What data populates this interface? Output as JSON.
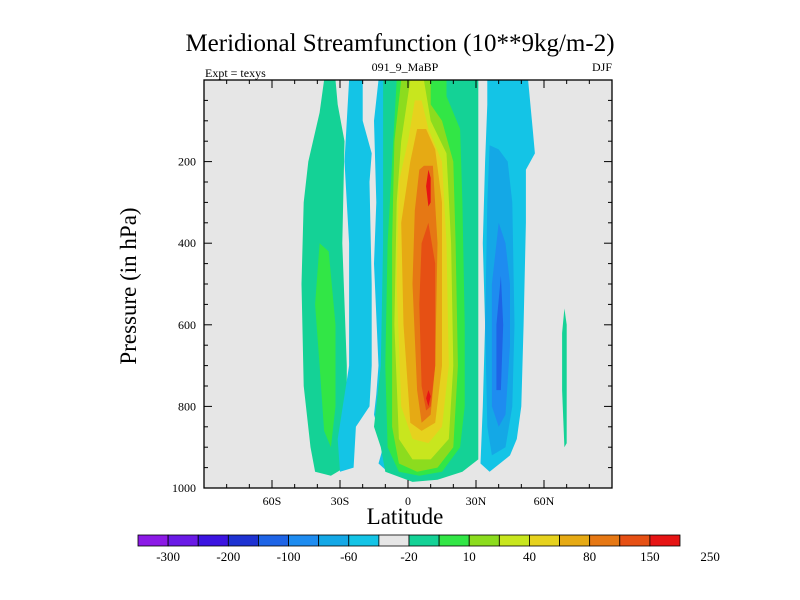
{
  "chart_data": {
    "type": "heatmap",
    "subtype": "filled-contour",
    "title": "Meridional Streamfunction (10**9kg/m-2)",
    "subtitle_left": "Expt = texys",
    "subtitle_center": "091_9_MaBP",
    "subtitle_right": "DJF",
    "xlabel": "Latitude",
    "ylabel": "Pressure (in hPa)",
    "xlim": [
      -90,
      90
    ],
    "ylim": [
      1000,
      0
    ],
    "x_ticks": [
      -60,
      -30,
      0,
      30,
      60
    ],
    "x_tick_labels": [
      "60S",
      "30S",
      "0",
      "30N",
      "60N"
    ],
    "y_ticks": [
      200,
      400,
      600,
      800,
      1000
    ],
    "y_tick_labels": [
      "200",
      "400",
      "600",
      "800",
      "1000"
    ],
    "background_color": "#e6e6e6",
    "colorbar": {
      "labels": [
        "-300",
        "-200",
        "-100",
        "-60",
        "-20",
        "10",
        "40",
        "80",
        "150",
        "250"
      ],
      "colors": [
        "#8c1ae6",
        "#6a1ae6",
        "#3c14e1",
        "#1e32d2",
        "#1e64e6",
        "#1e8cf0",
        "#14a8e6",
        "#14c4e6",
        "#e6e6e6",
        "#14d296",
        "#32e646",
        "#8cdc1e",
        "#c8e61e",
        "#e6d21e",
        "#e6aa14",
        "#e67814",
        "#e65014",
        "#e61414"
      ]
    },
    "regions": [
      {
        "name": "sh-ferrel-cell",
        "level": 10,
        "color": "#14d296",
        "points": [
          [
            -37,
            0
          ],
          [
            -32,
            0
          ],
          [
            -31,
            60
          ],
          [
            -28,
            150
          ],
          [
            -29,
            400
          ],
          [
            -27,
            700
          ],
          [
            -27,
            900
          ],
          [
            -28,
            950
          ],
          [
            -34,
            970
          ],
          [
            -41,
            960
          ],
          [
            -43,
            900
          ],
          [
            -46,
            750
          ],
          [
            -47,
            500
          ],
          [
            -46,
            300
          ],
          [
            -44,
            200
          ],
          [
            -39,
            80
          ]
        ]
      },
      {
        "name": "sh-ferrel-core",
        "level": 40,
        "color": "#32e646",
        "points": [
          [
            -39,
            400
          ],
          [
            -35,
            420
          ],
          [
            -32,
            600
          ],
          [
            -32,
            800
          ],
          [
            -34,
            900
          ],
          [
            -37,
            860
          ],
          [
            -39,
            700
          ],
          [
            -41,
            550
          ]
        ]
      },
      {
        "name": "polar-negative",
        "level": -20,
        "color": "#14c4e6",
        "points": [
          [
            -26,
            0
          ],
          [
            -20,
            0
          ],
          [
            -20,
            100
          ],
          [
            -16,
            180
          ],
          [
            -17,
            250
          ],
          [
            -16,
            500
          ],
          [
            -16,
            700
          ],
          [
            -17,
            800
          ],
          [
            -23,
            850
          ],
          [
            -24,
            950
          ],
          [
            -30,
            960
          ],
          [
            -31,
            880
          ],
          [
            -26,
            700
          ],
          [
            -26,
            400
          ],
          [
            -28,
            200
          ],
          [
            -27,
            100
          ]
        ]
      },
      {
        "name": "subtropical-negative",
        "level": -20,
        "color": "#14c4e6",
        "points": [
          [
            -13,
            0
          ],
          [
            -9,
            0
          ],
          [
            -9,
            960
          ],
          [
            -13,
            940
          ],
          [
            -11,
            900
          ],
          [
            -15,
            820
          ],
          [
            -14,
            770
          ],
          [
            -13,
            700
          ],
          [
            -15,
            450
          ],
          [
            -14,
            300
          ],
          [
            -15,
            100
          ]
        ]
      },
      {
        "name": "hadley-10",
        "level": 10,
        "color": "#14d296",
        "points": [
          [
            -11,
            0
          ],
          [
            31,
            0
          ],
          [
            31,
            930
          ],
          [
            24,
            960
          ],
          [
            13,
            980
          ],
          [
            2,
            985
          ],
          [
            -10,
            960
          ],
          [
            -12,
            900
          ],
          [
            -15,
            850
          ],
          [
            -12,
            700
          ],
          [
            -11,
            400
          ]
        ]
      },
      {
        "name": "hadley-40",
        "level": 40,
        "color": "#32e646",
        "points": [
          [
            -5,
            0
          ],
          [
            17,
            0
          ],
          [
            17,
            40
          ],
          [
            23,
            120
          ],
          [
            24,
            300
          ],
          [
            25,
            600
          ],
          [
            25,
            800
          ],
          [
            23,
            900
          ],
          [
            15,
            960
          ],
          [
            5,
            970
          ],
          [
            -4,
            960
          ],
          [
            -9,
            900
          ],
          [
            -10,
            700
          ],
          [
            -9,
            400
          ],
          [
            -7,
            200
          ],
          [
            -6,
            100
          ]
        ]
      },
      {
        "name": "hadley-80",
        "level": 80,
        "color": "#8cdc1e",
        "points": [
          [
            -3,
            0
          ],
          [
            10,
            0
          ],
          [
            10,
            60
          ],
          [
            15,
            100
          ],
          [
            20,
            200
          ],
          [
            21,
            400
          ],
          [
            22,
            700
          ],
          [
            20,
            900
          ],
          [
            13,
            950
          ],
          [
            4,
            960
          ],
          [
            -4,
            940
          ],
          [
            -7,
            850
          ],
          [
            -7,
            400
          ],
          [
            -6,
            150
          ]
        ]
      },
      {
        "name": "hadley-100",
        "level": 100,
        "color": "#c8e61e",
        "points": [
          [
            1,
            0
          ],
          [
            7,
            0
          ],
          [
            10,
            100
          ],
          [
            17,
            180
          ],
          [
            19,
            400
          ],
          [
            20,
            700
          ],
          [
            18,
            880
          ],
          [
            10,
            930
          ],
          [
            2,
            930
          ],
          [
            -4,
            880
          ],
          [
            -6,
            600
          ],
          [
            -5,
            300
          ],
          [
            -3,
            150
          ]
        ]
      },
      {
        "name": "hadley-120",
        "level": 120,
        "color": "#e6d21e",
        "points": [
          [
            3,
            50
          ],
          [
            6,
            50
          ],
          [
            9,
            120
          ],
          [
            15,
            200
          ],
          [
            17,
            400
          ],
          [
            18,
            700
          ],
          [
            15,
            850
          ],
          [
            9,
            890
          ],
          [
            2,
            880
          ],
          [
            -3,
            800
          ],
          [
            -5,
            500
          ],
          [
            -4,
            250
          ],
          [
            0,
            150
          ]
        ]
      },
      {
        "name": "hadley-150",
        "level": 150,
        "color": "#e6aa14",
        "points": [
          [
            4,
            120
          ],
          [
            8,
            120
          ],
          [
            12,
            170
          ],
          [
            15,
            300
          ],
          [
            15,
            700
          ],
          [
            12,
            840
          ],
          [
            6,
            860
          ],
          [
            1,
            840
          ],
          [
            -2,
            600
          ],
          [
            -3,
            350
          ],
          [
            1,
            200
          ]
        ]
      },
      {
        "name": "hadley-200",
        "level": 200,
        "color": "#e67814",
        "points": [
          [
            7,
            210
          ],
          [
            11,
            210
          ],
          [
            13,
            400
          ],
          [
            12,
            700
          ],
          [
            10,
            820
          ],
          [
            6,
            840
          ],
          [
            4,
            760
          ],
          [
            2,
            500
          ],
          [
            3,
            320
          ],
          [
            5,
            220
          ]
        ]
      },
      {
        "name": "hadley-250",
        "level": 250,
        "color": "#e65014",
        "points": [
          [
            9,
            350
          ],
          [
            12,
            450
          ],
          [
            12,
            700
          ],
          [
            10,
            800
          ],
          [
            8,
            810
          ],
          [
            6,
            750
          ],
          [
            5,
            550
          ],
          [
            6,
            400
          ]
        ]
      },
      {
        "name": "hadley-300-upper",
        "level": 300,
        "color": "#e61414",
        "points": [
          [
            9,
            220
          ],
          [
            10,
            240
          ],
          [
            10,
            300
          ],
          [
            9,
            310
          ],
          [
            8,
            260
          ]
        ]
      },
      {
        "name": "hadley-300-lower",
        "level": 300,
        "color": "#e61414",
        "points": [
          [
            9,
            760
          ],
          [
            10,
            775
          ],
          [
            9,
            800
          ],
          [
            8,
            780
          ]
        ]
      },
      {
        "name": "nh-ferrel-20",
        "level": -20,
        "color": "#14c4e6",
        "points": [
          [
            35,
            0
          ],
          [
            53,
            0
          ],
          [
            55,
            120
          ],
          [
            56,
            180
          ],
          [
            52,
            220
          ],
          [
            52,
            350
          ],
          [
            51,
            600
          ],
          [
            50,
            800
          ],
          [
            48,
            880
          ],
          [
            45,
            920
          ],
          [
            36,
            960
          ],
          [
            32,
            940
          ],
          [
            33,
            800
          ],
          [
            34,
            600
          ],
          [
            33,
            400
          ],
          [
            34,
            200
          ],
          [
            35,
            60
          ]
        ]
      },
      {
        "name": "nh-ferrel-40",
        "level": -40,
        "color": "#14a8e6",
        "points": [
          [
            36,
            160
          ],
          [
            40,
            170
          ],
          [
            44,
            200
          ],
          [
            46,
            300
          ],
          [
            47,
            600
          ],
          [
            46,
            800
          ],
          [
            43,
            900
          ],
          [
            37,
            920
          ],
          [
            35,
            850
          ],
          [
            34,
            600
          ],
          [
            35,
            300
          ]
        ]
      },
      {
        "name": "nh-ferrel-60",
        "level": -60,
        "color": "#1e8cf0",
        "points": [
          [
            40,
            350
          ],
          [
            43,
            400
          ],
          [
            45,
            500
          ],
          [
            45,
            650
          ],
          [
            43,
            820
          ],
          [
            40,
            850
          ],
          [
            37,
            800
          ],
          [
            37,
            500
          ]
        ]
      },
      {
        "name": "nh-ferrel-core",
        "level": -70,
        "color": "#1e64e6",
        "points": [
          [
            41,
            480
          ],
          [
            42,
            600
          ],
          [
            41,
            760
          ],
          [
            39,
            760
          ],
          [
            39,
            600
          ]
        ]
      },
      {
        "name": "arctic-positive",
        "level": 10,
        "color": "#14d296",
        "points": [
          [
            69,
            560
          ],
          [
            70,
            600
          ],
          [
            70,
            890
          ],
          [
            69,
            900
          ],
          [
            68,
            760
          ],
          [
            68,
            620
          ]
        ]
      }
    ]
  }
}
